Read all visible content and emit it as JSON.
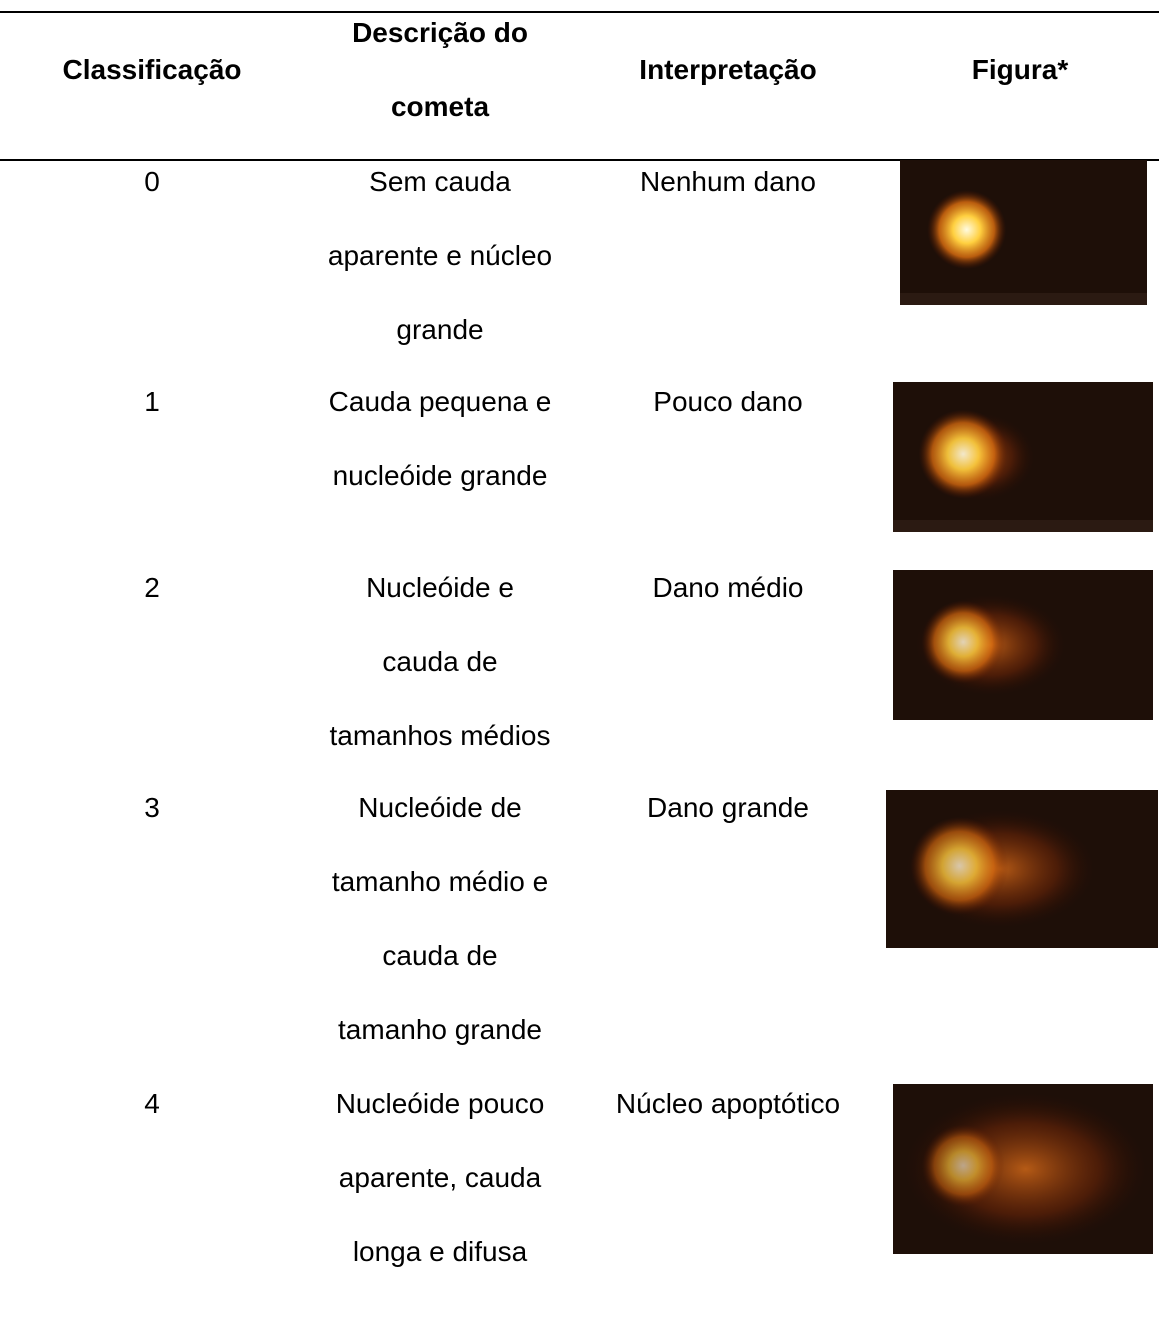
{
  "table": {
    "header": [
      [
        "Classificação"
      ],
      [
        "Descrição do",
        "cometa"
      ],
      [
        "Interpretação"
      ],
      [
        "Figura*"
      ]
    ],
    "rows": [
      {
        "classification": 0,
        "description": [
          "Sem cauda",
          "aparente e núcleo",
          "grande"
        ],
        "interpretation": "Nenhum dano"
      },
      {
        "classification": 1,
        "description": [
          "Cauda pequena e",
          "nucleóide grande"
        ],
        "interpretation": "Pouco dano"
      },
      {
        "classification": 2,
        "description": [
          "Nucleóide e",
          "cauda de",
          "tamanhos médios"
        ],
        "interpretation": "Dano médio"
      },
      {
        "classification": 3,
        "description": [
          "Nucleóide de",
          "tamanho médio e",
          "cauda de",
          "tamanho grande"
        ],
        "interpretation": "Dano grande"
      },
      {
        "classification": 4,
        "description": [
          "Nucleóide pouco",
          "aparente, cauda",
          "longa e difusa"
        ],
        "interpretation": "Núcleo apoptótico"
      }
    ]
  }
}
